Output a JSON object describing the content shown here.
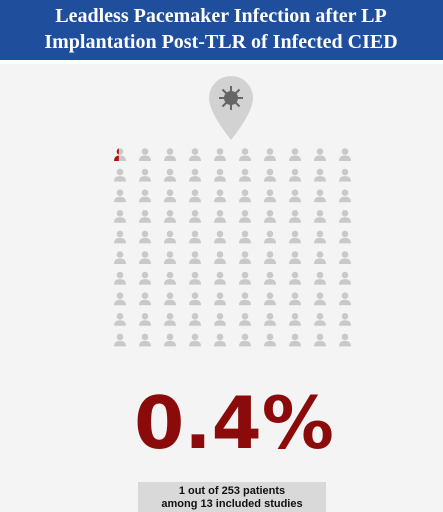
{
  "header": {
    "title": [
      "Leadless Pacemaker Infection after LP",
      "Implantation Post-TLR of Infected CIED"
    ]
  },
  "stat": {
    "value": 0.4,
    "label": "0.4%"
  },
  "caption": [
    "1 out of 253 patients",
    "among 13 included studies"
  ]
}
